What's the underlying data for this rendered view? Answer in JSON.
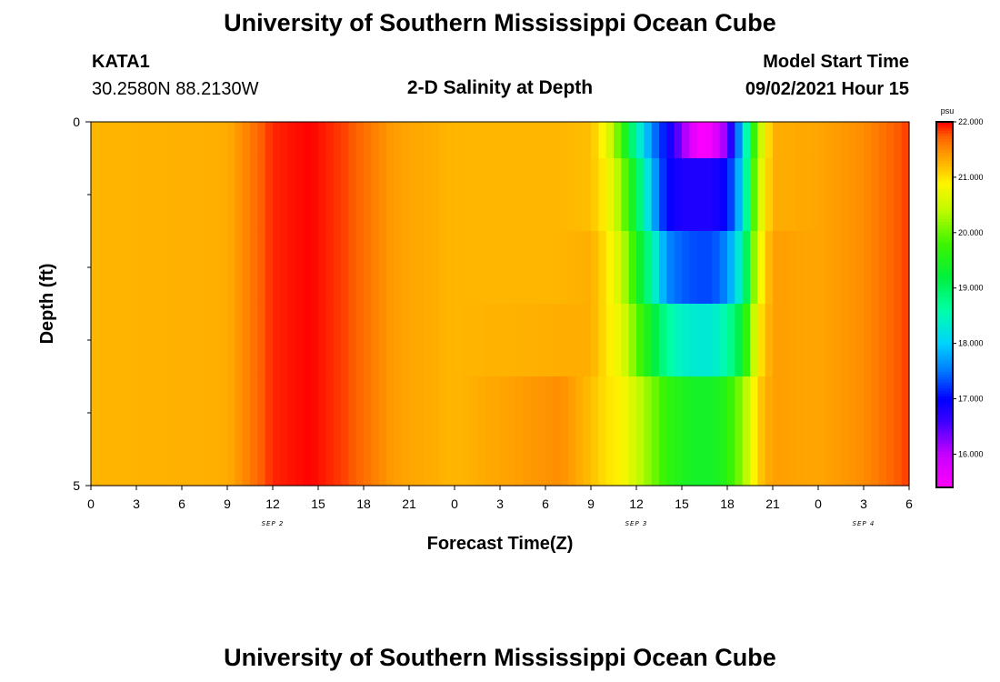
{
  "header": {
    "title": "University of Southern Mississippi Ocean Cube",
    "station": "KATA1",
    "coords": "30.2580N  88.2130W",
    "subtitle": "2-D Salinity at Depth",
    "model_start_label": "Model Start Time",
    "model_start_value": "09/02/2021 Hour 15"
  },
  "footer": {
    "title": "University of Southern Mississippi Ocean Cube"
  },
  "chart_data": {
    "type": "heatmap",
    "title": "2-D Salinity at Depth",
    "xlabel": "Forecast Time(Z)",
    "ylabel": "Depth (ft)",
    "x_hours": [
      0,
      54
    ],
    "x_tick_labels": [
      "0",
      "3",
      "6",
      "9",
      "12",
      "15",
      "18",
      "21",
      "0",
      "3",
      "6",
      "9",
      "12",
      "15",
      "18",
      "21",
      "0",
      "3",
      "6"
    ],
    "date_labels": [
      {
        "text": "SEP 2",
        "hour": 12
      },
      {
        "text": "SEP 3",
        "hour": 36
      },
      {
        "text": "SEP 4",
        "hour": 51
      }
    ],
    "y_range": [
      0,
      5
    ],
    "y_tick_labels": [
      {
        "value": 0,
        "text": "0"
      },
      {
        "value": 5,
        "text": "5"
      }
    ],
    "y_minor_ticks": [
      1,
      2,
      3,
      4
    ],
    "depth_levels": [
      0.25,
      1.0,
      2.0,
      3.0,
      4.0,
      4.75
    ],
    "colorbar": {
      "unit": "psu",
      "vmin": 15.4,
      "vmax": 22.0,
      "ticks": [
        "22.000",
        "21.000",
        "20.000",
        "19.000",
        "18.000",
        "17.000",
        "16.000"
      ]
    },
    "salinity_profile": [
      {
        "hour": 0,
        "values": [
          21.25,
          21.25,
          21.25,
          21.25,
          21.25
        ]
      },
      {
        "hour": 9,
        "values": [
          21.3,
          21.3,
          21.3,
          21.3,
          21.3
        ]
      },
      {
        "hour": 10.5,
        "values": [
          21.6,
          21.6,
          21.6,
          21.6,
          21.6
        ]
      },
      {
        "hour": 12,
        "values": [
          21.9,
          21.9,
          21.9,
          21.9,
          21.9
        ]
      },
      {
        "hour": 14.5,
        "values": [
          22.0,
          22.0,
          22.0,
          22.0,
          22.0
        ]
      },
      {
        "hour": 17,
        "values": [
          21.8,
          21.8,
          21.8,
          21.8,
          21.8
        ]
      },
      {
        "hour": 20,
        "values": [
          21.4,
          21.4,
          21.4,
          21.4,
          21.4
        ]
      },
      {
        "hour": 24,
        "values": [
          21.25,
          21.25,
          21.25,
          21.25,
          21.25
        ]
      },
      {
        "hour": 31,
        "values": [
          21.25,
          21.25,
          21.25,
          21.3,
          21.5
        ]
      },
      {
        "hour": 33,
        "values": [
          21.2,
          21.2,
          21.3,
          21.3,
          21.2
        ]
      },
      {
        "hour": 34,
        "values": [
          20.8,
          20.9,
          21.0,
          21.0,
          21.0
        ]
      },
      {
        "hour": 35,
        "values": [
          19.8,
          20.2,
          20.5,
          20.7,
          20.9
        ]
      },
      {
        "hour": 36,
        "values": [
          18.6,
          19.2,
          19.6,
          20.0,
          20.5
        ]
      },
      {
        "hour": 37,
        "values": [
          17.6,
          17.9,
          18.6,
          19.3,
          20.1
        ]
      },
      {
        "hour": 38,
        "values": [
          17.0,
          17.0,
          17.6,
          18.7,
          19.7
        ]
      },
      {
        "hour": 39,
        "values": [
          16.3,
          16.8,
          17.4,
          18.4,
          19.5
        ]
      },
      {
        "hour": 40,
        "values": [
          15.5,
          16.8,
          17.3,
          18.3,
          19.4
        ]
      },
      {
        "hour": 40.5,
        "values": [
          15.4,
          16.8,
          17.3,
          18.3,
          19.4
        ]
      },
      {
        "hour": 41,
        "values": [
          15.6,
          16.8,
          17.3,
          18.3,
          19.4
        ]
      },
      {
        "hour": 42,
        "values": [
          16.3,
          17.0,
          17.6,
          18.6,
          19.6
        ]
      },
      {
        "hour": 43,
        "values": [
          18.0,
          18.1,
          18.5,
          19.3,
          20.2
        ]
      },
      {
        "hour": 44,
        "values": [
          20.3,
          20.5,
          20.7,
          20.9,
          21.1
        ]
      },
      {
        "hour": 45,
        "values": [
          21.3,
          21.3,
          21.4,
          21.4,
          21.4
        ]
      },
      {
        "hour": 48,
        "values": [
          21.35,
          21.35,
          21.35,
          21.35,
          21.35
        ]
      },
      {
        "hour": 51,
        "values": [
          21.5,
          21.5,
          21.5,
          21.5,
          21.5
        ]
      },
      {
        "hour": 54,
        "values": [
          21.85,
          21.85,
          21.85,
          21.85,
          21.85
        ]
      }
    ]
  }
}
